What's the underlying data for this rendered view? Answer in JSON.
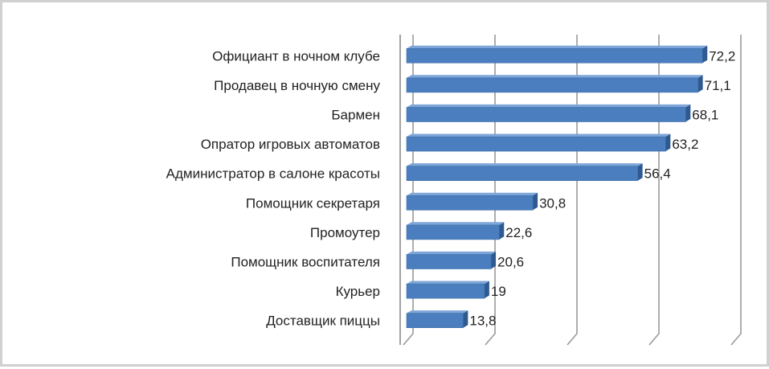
{
  "chart_data": {
    "type": "bar",
    "orientation": "horizontal",
    "title": "",
    "xlabel": "",
    "ylabel": "",
    "categories": [
      "Официант в ночном клубе",
      "Продавец в ночную смену",
      "Бармен",
      "Опратор игровых автоматов",
      "Администратор в салоне красоты",
      "Помощник секретаря",
      "Промоутер",
      "Помощник воспитателя",
      "Курьер",
      "Доставщик пиццы"
    ],
    "values": [
      72.2,
      71.1,
      68.1,
      63.2,
      56.4,
      30.8,
      22.6,
      20.6,
      19,
      13.8
    ],
    "value_labels": [
      "72,2",
      "71,1",
      "68,1",
      "63,2",
      "56,4",
      "30,8",
      "22,6",
      "20,6",
      "19",
      "13,8"
    ],
    "xlim": [
      0,
      80
    ],
    "grid": true,
    "legend": "none",
    "style": "3d",
    "bar_color": "#4a7ebf",
    "bar_top_color": "#7fa6d8",
    "bar_side_color": "#2f5a8f",
    "grid_color": "#9a9a9a"
  }
}
